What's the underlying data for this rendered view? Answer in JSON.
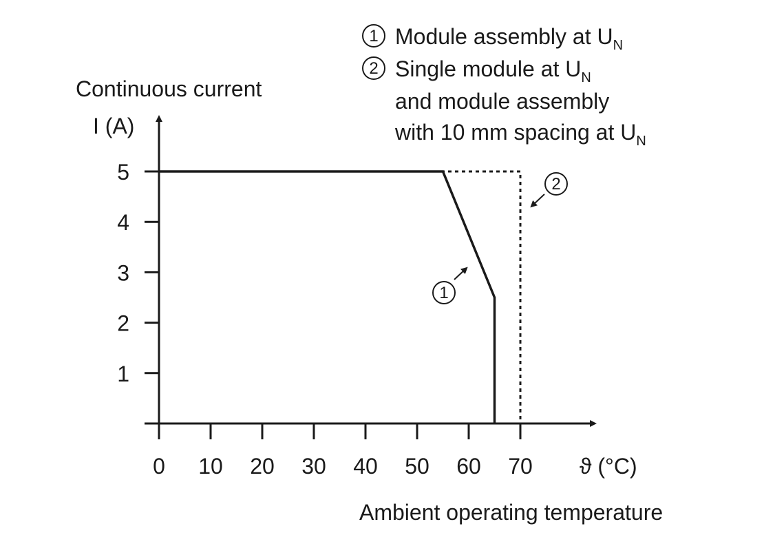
{
  "chart_data": {
    "type": "line",
    "y_axis": {
      "label_top": "Continuous current",
      "label": "I (A)",
      "ticks": [
        1,
        2,
        3,
        4,
        5
      ],
      "ylim": [
        0,
        5.6
      ]
    },
    "x_axis": {
      "label": "ϑ (°C)",
      "caption": "Ambient operating temperature",
      "ticks": [
        0,
        10,
        20,
        30,
        40,
        50,
        60,
        70
      ],
      "xlim": [
        0,
        83
      ]
    },
    "legend": [
      {
        "marker": "1",
        "lines": [
          {
            "text": "Module assembly at U",
            "sub": "N"
          }
        ]
      },
      {
        "marker": "2",
        "lines": [
          {
            "text": "Single module at U",
            "sub": "N"
          },
          {
            "text": "and module assembly",
            "sub": ""
          },
          {
            "text": "with 10 mm spacing at U",
            "sub": "N"
          }
        ]
      }
    ],
    "series": [
      {
        "marker": "1",
        "style": "solid",
        "color": "#1a1a1a",
        "points": [
          [
            0,
            5
          ],
          [
            55,
            5
          ],
          [
            65,
            2.5
          ],
          [
            65,
            0
          ]
        ]
      },
      {
        "marker": "2",
        "style": "dashed",
        "color": "#1a1a1a",
        "points": [
          [
            0,
            5
          ],
          [
            70,
            5
          ],
          [
            70,
            0
          ]
        ]
      }
    ]
  }
}
